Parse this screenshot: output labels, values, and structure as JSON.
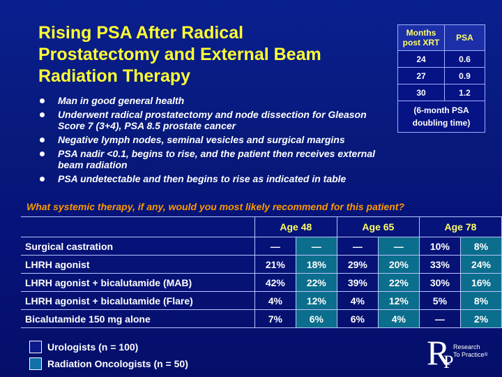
{
  "title_lines": [
    "Rising PSA After Radical",
    "Prostatectomy and External Beam",
    "Radiation Therapy"
  ],
  "bullets": [
    "Man in good general health",
    "Underwent radical prostatectomy and node dissection for Gleason Score 7 (3+4), PSA 8.5 prostate cancer",
    "Negative lymph nodes, seminal vesicles and surgical margins",
    "PSA nadir <0.1, begins to rise, and the patient then receives external beam radiation",
    "PSA undetectable and then begins to rise as indicated in table"
  ],
  "psa_table": {
    "header_months": "Months post XRT",
    "header_psa": "PSA",
    "rows": [
      {
        "months": "24",
        "psa": "0.6"
      },
      {
        "months": "27",
        "psa": "0.9"
      },
      {
        "months": "30",
        "psa": "1.2"
      }
    ],
    "note": "(6-month PSA doubling time)"
  },
  "question": "What systemic therapy, if any, would you most likely recommend for this patient?",
  "survey": {
    "age_groups": [
      "Age 48",
      "Age 65",
      "Age 78"
    ],
    "rows": [
      {
        "label": "Surgical castration",
        "values": [
          "—",
          "—",
          "—",
          "—",
          "10%",
          "8%"
        ]
      },
      {
        "label": "LHRH agonist",
        "values": [
          "21%",
          "18%",
          "29%",
          "20%",
          "33%",
          "24%"
        ]
      },
      {
        "label": "LHRH agonist + bicalutamide (MAB)",
        "values": [
          "42%",
          "22%",
          "39%",
          "22%",
          "30%",
          "16%"
        ]
      },
      {
        "label": "LHRH agonist + bicalutamide (Flare)",
        "values": [
          "4%",
          "12%",
          "4%",
          "12%",
          "5%",
          "8%"
        ]
      },
      {
        "label": "Bicalutamide 150 mg alone",
        "values": [
          "7%",
          "6%",
          "6%",
          "4%",
          "—",
          "2%"
        ]
      }
    ]
  },
  "legend": [
    {
      "label": "Urologists  (n = 100)",
      "color": "#0a1a8a"
    },
    {
      "label": "Radiation Oncologists  (n = 50)",
      "color": "#1070a8"
    }
  ],
  "logo": {
    "letter": "R",
    "sub_letter": "P",
    "line1": "Research",
    "line2": "To Practice",
    "mark": "®"
  },
  "colors": {
    "title": "#ffff33",
    "question": "#ff9900",
    "header_text": "#ffff66",
    "rad_column": "#0b6e8c"
  }
}
